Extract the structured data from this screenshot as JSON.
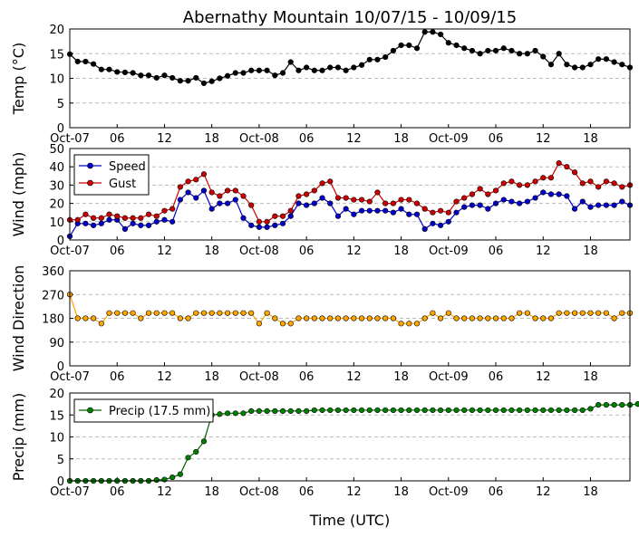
{
  "title": "Abernathy Mountain 10/07/15 - 10/09/15",
  "xlabel": "Time (UTC)",
  "x_tick_labels": [
    "Oct-07",
    "06",
    "12",
    "18",
    "Oct-08",
    "06",
    "12",
    "18",
    "Oct-09",
    "06",
    "12",
    "18"
  ],
  "x_tick_hours": [
    0,
    6,
    12,
    18,
    24,
    30,
    36,
    42,
    48,
    54,
    60,
    66
  ],
  "x_range_hours": [
    0,
    71
  ],
  "colors": {
    "temp": "#000000",
    "speed": "#0000cc",
    "gust": "#cc0000",
    "direction_marker": "#ffa500",
    "precip": "#006400",
    "precip_marker": "#008000",
    "grid": "#bbbbbb"
  },
  "chart_data": [
    {
      "id": "temp",
      "type": "line",
      "ylabel": "Temp (°C)",
      "ylim": [
        0,
        20
      ],
      "yticks": [
        0,
        5,
        10,
        15,
        20
      ],
      "series": [
        {
          "name": "Temp",
          "hours_start": 0,
          "step_hours": 1,
          "values": [
            14.9,
            13.4,
            13.4,
            12.9,
            11.8,
            11.8,
            11.3,
            11.2,
            11.1,
            10.6,
            10.6,
            10.1,
            10.6,
            10.1,
            9.5,
            9.5,
            10.1,
            9.0,
            9.4,
            10.0,
            10.5,
            11.1,
            11.1,
            11.6,
            11.6,
            11.6,
            10.6,
            11.1,
            13.3,
            11.6,
            12.2,
            11.6,
            11.6,
            12.2,
            12.2,
            11.6,
            12.2,
            12.7,
            13.8,
            13.8,
            14.3,
            15.6,
            16.7,
            16.7,
            16.1,
            19.4,
            19.4,
            18.9,
            17.2,
            16.7,
            16.1,
            15.6,
            15.0,
            15.6,
            15.6,
            16.1,
            15.6,
            15.0,
            15.0,
            15.6,
            14.4,
            12.8,
            15.0,
            12.8,
            12.2,
            12.2,
            12.8,
            13.9,
            13.9,
            13.3,
            12.8,
            12.2
          ]
        }
      ]
    },
    {
      "id": "wind",
      "type": "line",
      "ylabel": "Wind (mph)",
      "ylim": [
        0,
        50
      ],
      "yticks": [
        0,
        10,
        20,
        30,
        40,
        50
      ],
      "legend": "top-left",
      "series": [
        {
          "name": "Speed",
          "hours_start": 0,
          "step_hours": 1,
          "values": [
            2,
            9,
            9,
            8,
            9,
            11,
            11,
            6,
            9,
            8,
            8,
            10,
            11,
            10,
            22,
            26,
            23,
            27,
            17,
            20,
            20,
            22,
            12,
            8,
            7,
            7,
            8,
            9,
            13,
            20,
            19,
            20,
            23,
            20,
            13,
            17,
            14,
            16,
            16,
            16,
            16,
            15,
            17,
            14,
            14,
            6,
            9,
            8,
            10,
            15,
            18,
            19,
            19,
            17,
            20,
            22,
            21,
            20,
            21,
            23,
            26,
            25,
            25,
            24,
            17,
            21,
            18,
            19,
            19,
            19,
            21,
            19
          ]
        },
        {
          "name": "Gust",
          "hours_start": 0,
          "step_hours": 1,
          "values": [
            11,
            11,
            14,
            12,
            12,
            14,
            13,
            12,
            12,
            12,
            14,
            13,
            16,
            17,
            29,
            32,
            33,
            36,
            26,
            24,
            27,
            27,
            24,
            19,
            10,
            10,
            13,
            13,
            16,
            24,
            25,
            27,
            31,
            32,
            23,
            23,
            22,
            22,
            21,
            26,
            20,
            20,
            22,
            22,
            20,
            17,
            15,
            16,
            15,
            21,
            23,
            25,
            28,
            25,
            27,
            31,
            32,
            30,
            30,
            32,
            34,
            34,
            42,
            40,
            37,
            31,
            32,
            29,
            32,
            31,
            29,
            30
          ]
        }
      ]
    },
    {
      "id": "direction",
      "type": "scatter",
      "ylabel": "Wind Direction",
      "ylim": [
        0,
        360
      ],
      "yticks": [
        0,
        90,
        180,
        270,
        360
      ],
      "series": [
        {
          "name": "Direction",
          "hours_start": 0,
          "step_hours": 1,
          "values": [
            270,
            180,
            180,
            180,
            160,
            200,
            200,
            200,
            200,
            180,
            200,
            200,
            200,
            200,
            180,
            180,
            200,
            200,
            200,
            200,
            200,
            200,
            200,
            200,
            160,
            200,
            180,
            160,
            160,
            180,
            180,
            180,
            180,
            180,
            180,
            180,
            180,
            180,
            180,
            180,
            180,
            180,
            160,
            160,
            160,
            180,
            200,
            180,
            200,
            180,
            180,
            180,
            180,
            180,
            180,
            180,
            180,
            200,
            200,
            180,
            180,
            180,
            200,
            200,
            200,
            200,
            200,
            200,
            200,
            180,
            200,
            200
          ]
        }
      ]
    },
    {
      "id": "precip",
      "type": "line",
      "ylabel": "Precip (mm)",
      "ylim": [
        0,
        20
      ],
      "yticks": [
        0,
        5,
        10,
        15,
        20
      ],
      "legend": "top-left",
      "series": [
        {
          "name": "Precip (17.5 mm)",
          "hours_start": 0,
          "step_hours": 1,
          "values": [
            0,
            0,
            0,
            0,
            0,
            0,
            0,
            0,
            0,
            0,
            0,
            0.2,
            0.3,
            0.8,
            1.5,
            5.3,
            6.6,
            9,
            15,
            15.2,
            15.4,
            15.4,
            15.4,
            15.9,
            15.9,
            15.9,
            15.9,
            15.9,
            15.9,
            15.9,
            15.9,
            16.1,
            16.1,
            16.1,
            16.1,
            16.1,
            16.1,
            16.1,
            16.1,
            16.1,
            16.1,
            16.1,
            16.1,
            16.1,
            16.1,
            16.1,
            16.1,
            16.1,
            16.1,
            16.1,
            16.1,
            16.1,
            16.1,
            16.1,
            16.1,
            16.1,
            16.1,
            16.1,
            16.1,
            16.1,
            16.1,
            16.1,
            16.1,
            16.1,
            16.1,
            16.1,
            16.4,
            17.3,
            17.3,
            17.3,
            17.3,
            17.3,
            17.5
          ]
        }
      ]
    }
  ]
}
